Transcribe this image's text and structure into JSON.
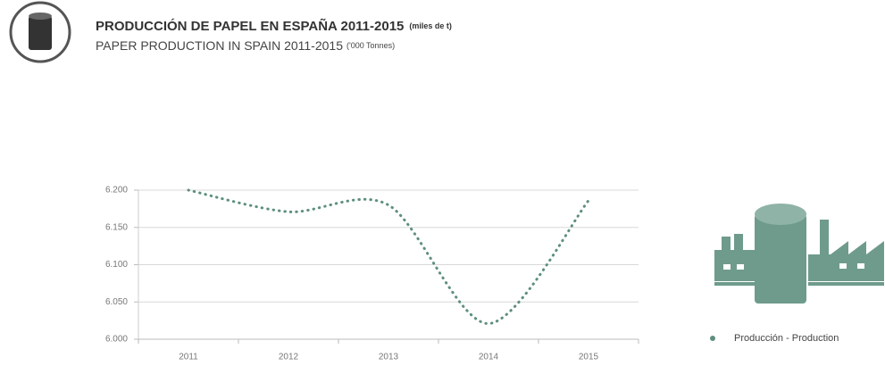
{
  "chart_data": {
    "type": "line",
    "title": "PRODUCCIÓN DE PAPEL EN ESPAÑA 2011-2015",
    "title_unit": "(miles de t)",
    "subtitle": "PAPER PRODUCTION IN SPAIN 2011-2015",
    "subtitle_unit": "('000 Tonnes)",
    "categories": [
      "2011",
      "2012",
      "2013",
      "2014",
      "2015"
    ],
    "series": [
      {
        "name": "Producción - Production",
        "color": "#5e8f7e",
        "values": [
          6200,
          6171,
          6180,
          6021,
          6186
        ]
      }
    ],
    "ylim": [
      6000,
      6200
    ],
    "yticks": [
      {
        "value": 6000,
        "label": "6.000"
      },
      {
        "value": 6050,
        "label": "6.050"
      },
      {
        "value": 6100,
        "label": "6.100"
      },
      {
        "value": 6150,
        "label": "6.150"
      },
      {
        "value": 6200,
        "label": "6.200"
      }
    ],
    "grid": true,
    "legend": "right"
  }
}
